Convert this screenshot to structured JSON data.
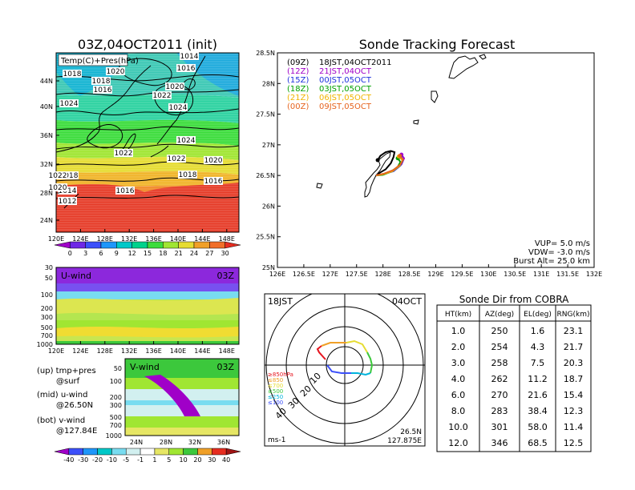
{
  "map_panel": {
    "title": "03Z,04OCT2011 (init)",
    "legend_label": "Temp(C)+Pres(hPa)",
    "lat_ticks": [
      "44N",
      "40N",
      "36N",
      "32N",
      "28N",
      "24N"
    ],
    "lon_ticks": [
      "120E",
      "124E",
      "128E",
      "132E",
      "136E",
      "140E",
      "144E",
      "148E"
    ],
    "isobar_labels": [
      "1014",
      "1016",
      "1018",
      "1020",
      "1018",
      "1016",
      "1020",
      "1022",
      "1024",
      "1024",
      "1024",
      "1022",
      "1022",
      "1020",
      "1018",
      "1018",
      "1016",
      "1014",
      "1016",
      "1012",
      "1022",
      "1020"
    ],
    "colorbar_ticks": [
      "0",
      "3",
      "6",
      "9",
      "12",
      "15",
      "18",
      "21",
      "24",
      "27",
      "30"
    ],
    "colorbar_colors": [
      "#a000c8",
      "#6e28e6",
      "#3c50fa",
      "#1e96fa",
      "#00c8c8",
      "#00d28c",
      "#3cdc3c",
      "#a0e632",
      "#e6dc32",
      "#f0a028",
      "#f06e28",
      "#e62d20"
    ]
  },
  "uwind_panel": {
    "label": "U-wind",
    "time": "03Z",
    "p_ticks": [
      "30",
      "50",
      "100",
      "200",
      "300",
      "500",
      "700",
      "1000"
    ],
    "lon_ticks": [
      "120E",
      "124E",
      "128E",
      "132E",
      "136E",
      "140E",
      "144E",
      "148E"
    ]
  },
  "vwind_panel": {
    "label": "V-wind",
    "time": "03Z",
    "p_ticks": [
      "50",
      "100",
      "200",
      "300",
      "500",
      "700",
      "1000"
    ],
    "lat_ticks": [
      "24N",
      "28N",
      "32N",
      "36N"
    ],
    "colorbar_ticks": [
      "-40",
      "-30",
      "-20",
      "-10",
      "-5",
      "-1",
      "1",
      "5",
      "10",
      "20",
      "30",
      "40"
    ],
    "colorbar_colors": [
      "#a000c8",
      "#3c50fa",
      "#1e96fa",
      "#00c8c8",
      "#78dcf0",
      "#d2f0f0",
      "#ffffff",
      "#e6e664",
      "#a0e632",
      "#3cc83c",
      "#f0a028",
      "#e62d20",
      "#a01414"
    ]
  },
  "notes": [
    {
      "a": "(up) tmp+pres",
      "b": "@surf"
    },
    {
      "a": "(mid) u-wind",
      "b": "@26.50N"
    },
    {
      "a": "(bot) v-wind",
      "b": "@127.84E"
    }
  ],
  "track_panel": {
    "title": "Sonde Tracking Forecast",
    "lat_ticks": [
      "28.5N",
      "28N",
      "27.5N",
      "27N",
      "26.5N",
      "26N",
      "25.5N",
      "25N"
    ],
    "lon_ticks": [
      "126E",
      "126.5E",
      "127E",
      "127.5E",
      "128E",
      "128.5E",
      "129E",
      "129.5E",
      "130E",
      "130.5E",
      "131E",
      "131.5E",
      "132E"
    ],
    "legend": [
      {
        "a": "(09Z)",
        "b": "18JST,04OCT2011",
        "color": "#000000"
      },
      {
        "a": "(12Z)",
        "b": "21JST,04OCT",
        "color": "#a000c8"
      },
      {
        "a": "(15Z)",
        "b": "00JST,05OCT",
        "color": "#1e32dc"
      },
      {
        "a": "(18Z)",
        "b": "03JST,05OCT",
        "color": "#00a000"
      },
      {
        "a": "(21Z)",
        "b": "06JST,05OCT",
        "color": "#f0b400"
      },
      {
        "a": "(00Z)",
        "b": "09JST,05OCT",
        "color": "#e6641e"
      }
    ],
    "vup": "VUP=  5.0  m/s",
    "vdw": "VDW= -3.0  m/s",
    "burst": "Burst Alt=  25.0  km"
  },
  "polar_panel": {
    "time": "18JST",
    "date": "04OCT",
    "ring_labels": [
      "10",
      "20",
      "30",
      "40"
    ],
    "height_legend": [
      {
        "t": "≥850hPa",
        "c": "#e6141e"
      },
      {
        "t": "≤850",
        "c": "#f0a028"
      },
      {
        "t": "≤700",
        "c": "#e6dc32"
      },
      {
        "t": "≤500",
        "c": "#3cc83c"
      },
      {
        "t": "≤250",
        "c": "#00b4dc"
      },
      {
        "t": "≤100",
        "c": "#3c50fa"
      }
    ],
    "unit": "ms-1",
    "lat": "26.5N",
    "lon": "127.875E"
  },
  "cobra_table": {
    "title": "Sonde Dir from COBRA",
    "headers": [
      "HT(km)",
      "AZ(deg)",
      "EL(deg)",
      "RNG(km)"
    ],
    "rows": [
      [
        "1.0",
        "250",
        "1.6",
        "23.1"
      ],
      [
        "2.0",
        "254",
        "4.3",
        "21.7"
      ],
      [
        "3.0",
        "258",
        "7.5",
        "20.3"
      ],
      [
        "4.0",
        "262",
        "11.2",
        "18.7"
      ],
      [
        "6.0",
        "270",
        "21.6",
        "15.4"
      ],
      [
        "8.0",
        "283",
        "38.4",
        "12.3"
      ],
      [
        "10.0",
        "301",
        "58.0",
        "11.4"
      ],
      [
        "12.0",
        "346",
        "68.5",
        "12.5"
      ]
    ]
  },
  "chart_data": [
    {
      "type": "heatmap",
      "title": "03Z,04OCT2011 (init)",
      "field": "Temp(C)+Pres(hPa)",
      "xlim": [
        120,
        150
      ],
      "ylim": [
        22,
        48
      ],
      "colorbar": [
        0,
        3,
        6,
        9,
        12,
        15,
        18,
        21,
        24,
        27,
        30
      ]
    },
    {
      "type": "heatmap",
      "field": "U-wind",
      "x_range": [
        120,
        150
      ],
      "p_range": [
        1000,
        30
      ]
    },
    {
      "type": "heatmap",
      "field": "V-wind",
      "x_range": [
        22,
        38
      ],
      "p_range": [
        1000,
        50
      ]
    },
    {
      "type": "line",
      "title": "Sonde Tracking Forecast",
      "xlim": [
        126,
        132
      ],
      "ylim": [
        25,
        28.5
      ],
      "series": [
        {
          "name": "(09Z) 18JST,04OCT2011",
          "color": "#000000",
          "x": [
            127.87,
            127.95,
            128.05,
            128.15,
            128.2,
            128.22,
            128.15,
            128.05,
            127.95,
            127.9
          ],
          "y": [
            26.5,
            26.55,
            26.6,
            26.7,
            26.8,
            26.88,
            26.9,
            26.88,
            26.82,
            26.75
          ]
        },
        {
          "name": "(12Z) 21JST,04OCT",
          "color": "#a000c8",
          "x": [
            127.87,
            128.0,
            128.2,
            128.35,
            128.4,
            128.35
          ],
          "y": [
            26.5,
            26.52,
            26.58,
            26.68,
            26.78,
            26.84
          ]
        },
        {
          "name": "(15Z) 00JST,05OCT",
          "color": "#1e32dc",
          "x": [
            127.87,
            128.0,
            128.2,
            128.33,
            128.38,
            128.33
          ],
          "y": [
            26.5,
            26.52,
            26.57,
            26.66,
            26.75,
            26.8
          ]
        },
        {
          "name": "(18Z) 03JST,05OCT",
          "color": "#00a000",
          "x": [
            127.87,
            128.0,
            128.15,
            128.28,
            128.33,
            128.28
          ],
          "y": [
            26.5,
            26.51,
            26.56,
            26.64,
            26.72,
            26.78
          ]
        },
        {
          "name": "(21Z) 06JST,05OCT",
          "color": "#f0b400",
          "x": [
            127.87,
            128.0,
            128.18,
            128.32,
            128.37,
            128.3
          ],
          "y": [
            26.5,
            26.52,
            26.57,
            26.66,
            26.75,
            26.81
          ]
        },
        {
          "name": "(00Z) 09JST,05OCT",
          "color": "#e6641e",
          "x": [
            127.87,
            128.02,
            128.2,
            128.33,
            128.38,
            128.32
          ],
          "y": [
            26.5,
            26.53,
            26.59,
            26.68,
            26.76,
            26.82
          ]
        }
      ]
    },
    {
      "type": "table",
      "title": "Sonde Dir from COBRA",
      "columns": [
        "HT(km)",
        "AZ(deg)",
        "EL(deg)",
        "RNG(km)"
      ],
      "rows": [
        [
          1.0,
          250,
          1.6,
          23.1
        ],
        [
          2.0,
          254,
          4.3,
          21.7
        ],
        [
          3.0,
          258,
          7.5,
          20.3
        ],
        [
          4.0,
          262,
          11.2,
          18.7
        ],
        [
          6.0,
          270,
          21.6,
          15.4
        ],
        [
          8.0,
          283,
          38.4,
          12.3
        ],
        [
          10.0,
          301,
          58.0,
          11.4
        ],
        [
          12.0,
          346,
          68.5,
          12.5
        ]
      ]
    }
  ]
}
